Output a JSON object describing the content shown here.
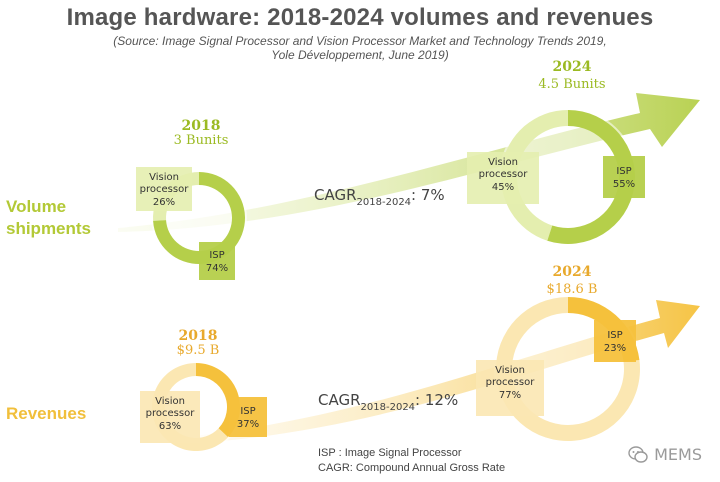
{
  "title": "Image hardware: 2018-2024 volumes and revenues",
  "source_line1": "(Source: Image Signal Processor and Vision Processor Market and Technology Trends 2019,",
  "source_line2": "Yole Développement, June 2019)",
  "colors": {
    "volume_dark": "#b5cf4a",
    "volume_light": "#e4eeaf",
    "volume_text": "#9bba22",
    "volume_label": "#b3c936",
    "revenue_dark": "#f5c13c",
    "revenue_light": "#fbe7b2",
    "revenue_text": "#e8a92c",
    "revenue_label": "#f1bf3b"
  },
  "chart_data": [
    {
      "type": "pie",
      "row_label_line1": "Volume",
      "row_label_line2": "shipments",
      "cagr_prefix": "CAGR",
      "cagr_period": "2018-2024",
      "cagr_value": ": 7%",
      "panels": [
        {
          "year": "2018",
          "total": "3 Bunits",
          "slices": [
            {
              "label": "Vision processor",
              "label_line1": "Vision",
              "label_line2": "processor",
              "pct_text": "26%",
              "value": 26
            },
            {
              "label": "ISP",
              "label_line1": "ISP",
              "label_line2": "",
              "pct_text": "74%",
              "value": 74
            }
          ]
        },
        {
          "year": "2024",
          "total": "4.5 Bunits",
          "slices": [
            {
              "label": "Vision processor",
              "label_line1": "Vision",
              "label_line2": "processor",
              "pct_text": "45%",
              "value": 45
            },
            {
              "label": "ISP",
              "label_line1": "ISP",
              "label_line2": "",
              "pct_text": "55%",
              "value": 55
            }
          ]
        }
      ]
    },
    {
      "type": "pie",
      "row_label_line1": "Revenues",
      "row_label_line2": "",
      "cagr_prefix": "CAGR",
      "cagr_period": "2018-2024",
      "cagr_value": ": 12%",
      "panels": [
        {
          "year": "2018",
          "total": "$9.5 B",
          "slices": [
            {
              "label": "Vision processor",
              "label_line1": "Vision",
              "label_line2": "processor",
              "pct_text": "63%",
              "value": 63
            },
            {
              "label": "ISP",
              "label_line1": "ISP",
              "label_line2": "",
              "pct_text": "37%",
              "value": 37
            }
          ]
        },
        {
          "year": "2024",
          "total": "$18.6 B",
          "slices": [
            {
              "label": "Vision processor",
              "label_line1": "Vision",
              "label_line2": "processor",
              "pct_text": "77%",
              "value": 77
            },
            {
              "label": "ISP",
              "label_line1": "ISP",
              "label_line2": "",
              "pct_text": "23%",
              "value": 23
            }
          ]
        }
      ]
    }
  ],
  "notes": {
    "isp": "ISP : Image Signal Processor",
    "cagr": "CAGR: Compound Annual Gross Rate"
  },
  "watermark": {
    "icon": "wechat-icon",
    "text": "MEMS"
  }
}
